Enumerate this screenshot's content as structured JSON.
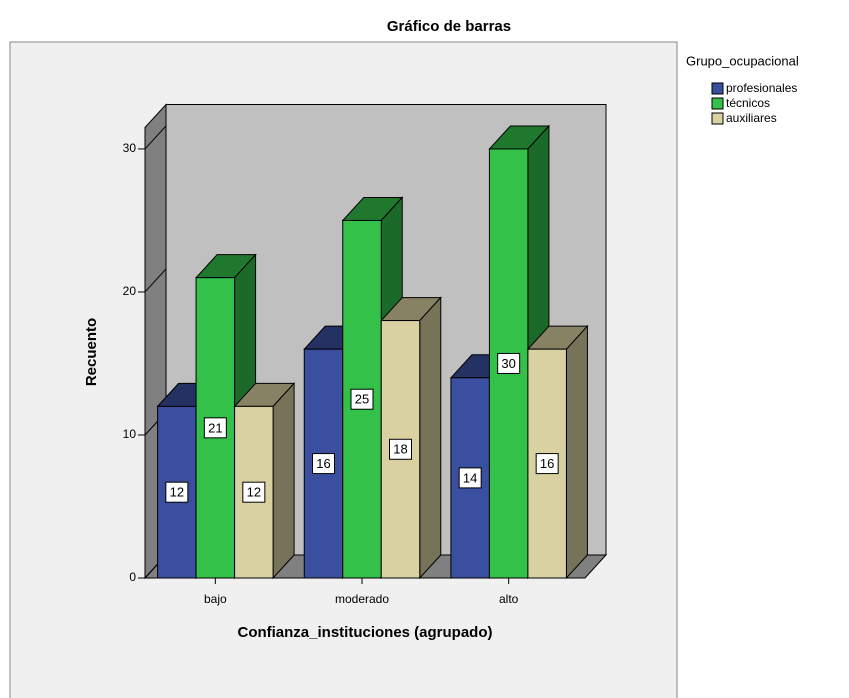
{
  "chart_data": {
    "type": "bar3d",
    "title": "Gráfico de barras",
    "x_label": "Confianza_instituciones (agrupado)",
    "y_label": "Recuento",
    "legend_title": "Grupo_ocupacional",
    "categories": [
      "bajo",
      "moderado",
      "alto"
    ],
    "series": [
      {
        "name": "profesionales",
        "color": "#3a4fa0",
        "values": [
          12,
          16,
          14
        ]
      },
      {
        "name": "técnicos",
        "color": "#33c14a",
        "values": [
          21,
          25,
          30
        ]
      },
      {
        "name": "auxiliares",
        "color": "#d9d1a2",
        "values": [
          12,
          18,
          16
        ]
      }
    ],
    "ylim": [
      0,
      31.5
    ],
    "yticks": [
      0,
      10,
      20,
      30
    ]
  }
}
